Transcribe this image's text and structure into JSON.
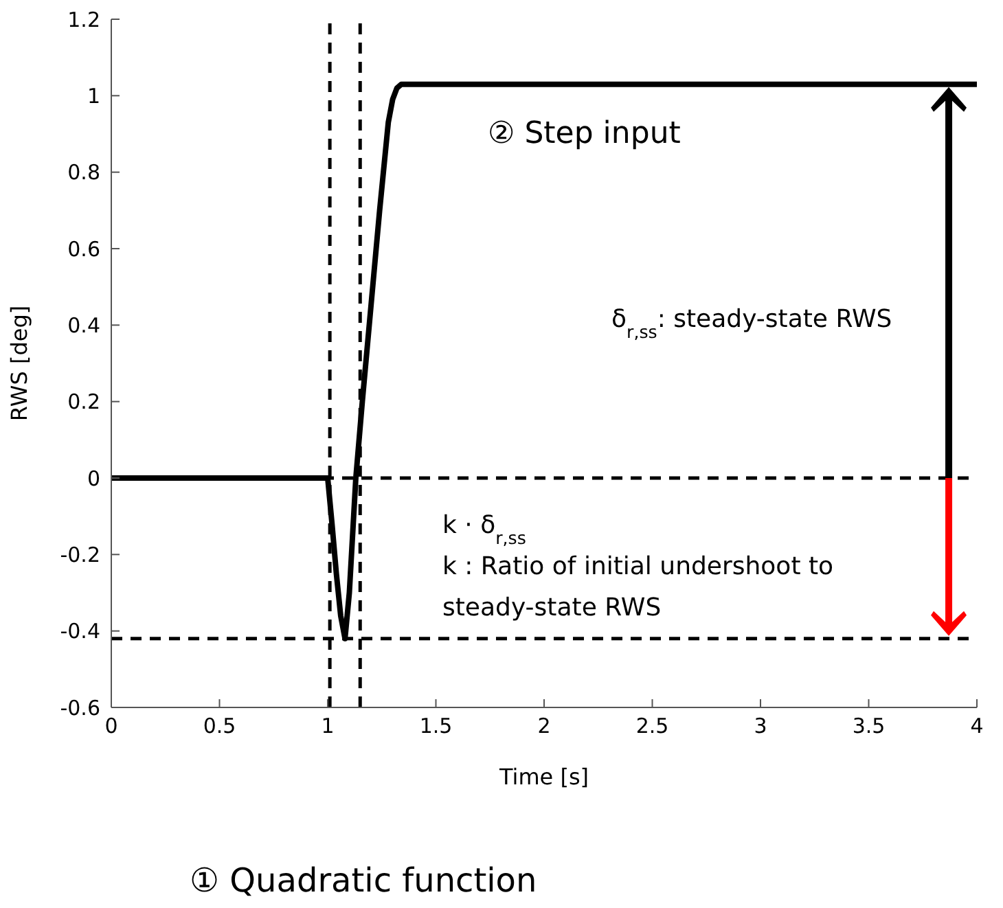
{
  "chart_data": {
    "type": "line",
    "xlabel": "Time [s]",
    "ylabel": "RWS [deg]",
    "x": [
      0,
      0.5,
      1.0,
      1.02,
      1.04,
      1.06,
      1.08,
      1.1,
      1.12,
      1.13,
      1.16,
      1.2,
      1.24,
      1.28,
      1.3,
      1.32,
      1.34,
      1.37,
      1.4,
      1.5,
      2,
      2.5,
      3,
      3.5,
      4
    ],
    "series": [
      {
        "color": "#000000",
        "values": [
          0,
          0,
          0,
          -0.12,
          -0.25,
          -0.36,
          -0.42,
          -0.3,
          -0.1,
          0,
          0.2,
          0.45,
          0.7,
          0.93,
          0.99,
          1.02,
          1.03,
          1.03,
          1.03,
          1.03,
          1.03,
          1.03,
          1.03,
          1.03,
          1.03
        ]
      }
    ],
    "xlim": [
      0,
      4
    ],
    "xticks": [
      0,
      0.5,
      1,
      1.5,
      2,
      2.5,
      3,
      3.5,
      4
    ],
    "ylim": [
      -0.6,
      1.2
    ],
    "yticks": [
      -0.6,
      -0.4,
      -0.2,
      0,
      0.2,
      0.4,
      0.6,
      0.8,
      1,
      1.2
    ],
    "marker": "none",
    "line_style": "solid",
    "ref_lines": [
      {
        "axis": "x",
        "value": 1.01,
        "line_style": "dashed",
        "color": "#000000"
      },
      {
        "axis": "x",
        "value": 1.15,
        "line_style": "dashed",
        "color": "#000000"
      },
      {
        "axis": "y",
        "value": 0,
        "line_style": "dashed",
        "color": "#000000"
      },
      {
        "axis": "y",
        "value": -0.42,
        "line_style": "dashed",
        "color": "#000000"
      }
    ],
    "annotations": [
      "② Step input",
      "δ$_{r,ss}$: steady-state RWS",
      "k · δ$_{r,ss}$",
      "k : Ratio of initial undershoot to",
      "steady-state RWS",
      "① Quadratic function"
    ]
  }
}
